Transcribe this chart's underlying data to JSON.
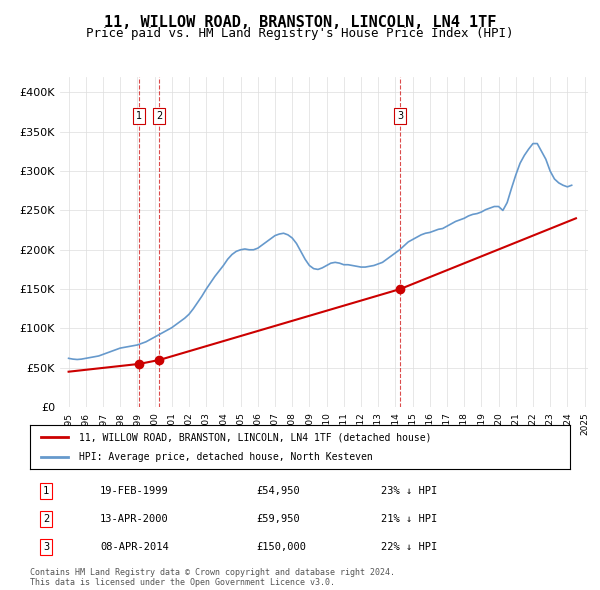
{
  "title": "11, WILLOW ROAD, BRANSTON, LINCOLN, LN4 1TF",
  "subtitle": "Price paid vs. HM Land Registry's House Price Index (HPI)",
  "title_fontsize": 11,
  "subtitle_fontsize": 9,
  "legend_label_red": "11, WILLOW ROAD, BRANSTON, LINCOLN, LN4 1TF (detached house)",
  "legend_label_blue": "HPI: Average price, detached house, North Kesteven",
  "footer": "Contains HM Land Registry data © Crown copyright and database right 2024.\nThis data is licensed under the Open Government Licence v3.0.",
  "transactions": [
    {
      "num": 1,
      "date": "19-FEB-1999",
      "price": 54950,
      "hpi_pct": "23% ↓ HPI",
      "year": 1999.12
    },
    {
      "num": 2,
      "date": "13-APR-2000",
      "price": 59950,
      "hpi_pct": "21% ↓ HPI",
      "year": 2000.28
    },
    {
      "num": 3,
      "date": "08-APR-2014",
      "price": 150000,
      "hpi_pct": "22% ↓ HPI",
      "year": 2014.27
    }
  ],
  "vline_years": [
    1999.12,
    2000.28,
    2014.27
  ],
  "ylim": [
    0,
    420000
  ],
  "yticks": [
    0,
    50000,
    100000,
    150000,
    200000,
    250000,
    300000,
    350000,
    400000
  ],
  "ytick_labels": [
    "£0",
    "£50K",
    "£100K",
    "£150K",
    "£200K",
    "£250K",
    "£300K",
    "£350K",
    "£400K"
  ],
  "background_color": "#ffffff",
  "grid_color": "#dddddd",
  "red_line_color": "#cc0000",
  "blue_line_color": "#6699cc",
  "vline_color": "#cc0000",
  "hpi_data": {
    "years": [
      1995.0,
      1995.25,
      1995.5,
      1995.75,
      1996.0,
      1996.25,
      1996.5,
      1996.75,
      1997.0,
      1997.25,
      1997.5,
      1997.75,
      1998.0,
      1998.25,
      1998.5,
      1998.75,
      1999.0,
      1999.25,
      1999.5,
      1999.75,
      2000.0,
      2000.25,
      2000.5,
      2000.75,
      2001.0,
      2001.25,
      2001.5,
      2001.75,
      2002.0,
      2002.25,
      2002.5,
      2002.75,
      2003.0,
      2003.25,
      2003.5,
      2003.75,
      2004.0,
      2004.25,
      2004.5,
      2004.75,
      2005.0,
      2005.25,
      2005.5,
      2005.75,
      2006.0,
      2006.25,
      2006.5,
      2006.75,
      2007.0,
      2007.25,
      2007.5,
      2007.75,
      2008.0,
      2008.25,
      2008.5,
      2008.75,
      2009.0,
      2009.25,
      2009.5,
      2009.75,
      2010.0,
      2010.25,
      2010.5,
      2010.75,
      2011.0,
      2011.25,
      2011.5,
      2011.75,
      2012.0,
      2012.25,
      2012.5,
      2012.75,
      2013.0,
      2013.25,
      2013.5,
      2013.75,
      2014.0,
      2014.25,
      2014.5,
      2014.75,
      2015.0,
      2015.25,
      2015.5,
      2015.75,
      2016.0,
      2016.25,
      2016.5,
      2016.75,
      2017.0,
      2017.25,
      2017.5,
      2017.75,
      2018.0,
      2018.25,
      2018.5,
      2018.75,
      2019.0,
      2019.25,
      2019.5,
      2019.75,
      2020.0,
      2020.25,
      2020.5,
      2020.75,
      2021.0,
      2021.25,
      2021.5,
      2021.75,
      2022.0,
      2022.25,
      2022.5,
      2022.75,
      2023.0,
      2023.25,
      2023.5,
      2023.75,
      2024.0,
      2024.25
    ],
    "values": [
      62000,
      61000,
      60500,
      61000,
      62000,
      63000,
      64000,
      65000,
      67000,
      69000,
      71000,
      73000,
      75000,
      76000,
      77000,
      78000,
      79000,
      81000,
      83000,
      86000,
      89000,
      92000,
      95000,
      98000,
      101000,
      105000,
      109000,
      113000,
      118000,
      125000,
      133000,
      141000,
      150000,
      158000,
      166000,
      173000,
      180000,
      188000,
      194000,
      198000,
      200000,
      201000,
      200000,
      200000,
      202000,
      206000,
      210000,
      214000,
      218000,
      220000,
      221000,
      219000,
      215000,
      208000,
      198000,
      188000,
      180000,
      176000,
      175000,
      177000,
      180000,
      183000,
      184000,
      183000,
      181000,
      181000,
      180000,
      179000,
      178000,
      178000,
      179000,
      180000,
      182000,
      184000,
      188000,
      192000,
      196000,
      200000,
      205000,
      210000,
      213000,
      216000,
      219000,
      221000,
      222000,
      224000,
      226000,
      227000,
      230000,
      233000,
      236000,
      238000,
      240000,
      243000,
      245000,
      246000,
      248000,
      251000,
      253000,
      255000,
      255000,
      250000,
      260000,
      278000,
      295000,
      310000,
      320000,
      328000,
      335000,
      335000,
      325000,
      315000,
      300000,
      290000,
      285000,
      282000,
      280000,
      282000
    ]
  },
  "price_data": {
    "years": [
      1995.0,
      1999.12,
      2000.28,
      2014.27,
      2024.5
    ],
    "values": [
      45000,
      54950,
      59950,
      150000,
      240000
    ]
  }
}
